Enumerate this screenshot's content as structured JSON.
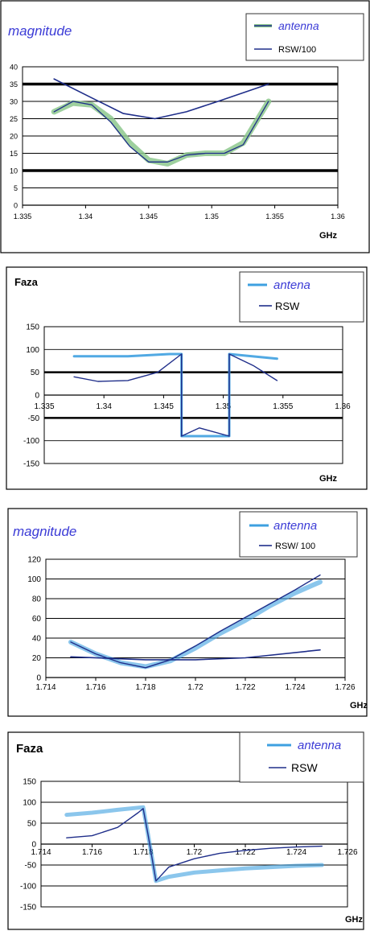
{
  "chart_data": [
    {
      "type": "line",
      "title": "magnitude",
      "xlabel": "GHz",
      "ylabel": "",
      "xlim": [
        1.335,
        1.36
      ],
      "ylim": [
        0,
        40
      ],
      "x_ticks": [
        "1.335",
        "1.34",
        "1.345",
        "1.35",
        "1.355",
        "1.36"
      ],
      "y_ticks": [
        "0",
        "5",
        "10",
        "15",
        "20",
        "25",
        "30",
        "35",
        "40"
      ],
      "grid": true,
      "legend_position": "top-right",
      "reference_lines": [
        10,
        35
      ],
      "series": [
        {
          "name": "antenna",
          "color": "#8dc88d",
          "x": [
            1.3375,
            1.339,
            1.3405,
            1.342,
            1.3435,
            1.345,
            1.3465,
            1.348,
            1.3495,
            1.351,
            1.3525,
            1.3545
          ],
          "y": [
            27,
            29.5,
            29,
            25,
            18,
            13,
            12,
            14.5,
            15,
            15,
            18,
            30
          ]
        },
        {
          "name": "RSW/100",
          "color": "#1f2e8a",
          "x": [
            1.3375,
            1.3405,
            1.343,
            1.3455,
            1.348,
            1.3505,
            1.3545
          ],
          "y": [
            36.5,
            31,
            26.5,
            25,
            27,
            30,
            35
          ]
        },
        {
          "name": "",
          "color": "#1f2e8a",
          "x": [
            1.3375,
            1.339,
            1.3405,
            1.342,
            1.3435,
            1.345,
            1.3465,
            1.348,
            1.3495,
            1.351,
            1.3525,
            1.3545
          ],
          "y": [
            27,
            30,
            29,
            24,
            17,
            12.5,
            12.5,
            14.5,
            15,
            15,
            17.5,
            30
          ]
        }
      ]
    },
    {
      "type": "line",
      "title": "Faza",
      "xlabel": "GHz",
      "ylabel": "",
      "xlim": [
        1.335,
        1.36
      ],
      "ylim": [
        -150,
        150
      ],
      "x_ticks": [
        "1.335",
        "1.34",
        "1.345",
        "1.35",
        "1.355",
        "1.36"
      ],
      "y_ticks": [
        "-150",
        "-100",
        "-50",
        "0",
        "50",
        "100",
        "150"
      ],
      "grid": true,
      "legend_position": "top-right",
      "reference_lines": [
        50,
        -50
      ],
      "series": [
        {
          "name": "antena",
          "color": "#3ea0e0",
          "x": [
            1.3375,
            1.342,
            1.3455,
            1.3465,
            1.3465,
            1.3505,
            1.3505,
            1.3545
          ],
          "y": [
            85,
            85,
            90,
            90,
            -90,
            -90,
            90,
            80
          ]
        },
        {
          "name": "RSW",
          "color": "#1f2e8a",
          "x": [
            1.3375,
            1.3395,
            1.342,
            1.3445,
            1.3465,
            1.3465,
            1.348,
            1.3505,
            1.3505,
            1.3525,
            1.3545
          ],
          "y": [
            40,
            30,
            32,
            50,
            90,
            -90,
            -72,
            -90,
            90,
            65,
            32
          ]
        }
      ]
    },
    {
      "type": "line",
      "title": "magnitude",
      "xlabel": "GHz",
      "ylabel": "",
      "xlim": [
        1.714,
        1.726
      ],
      "ylim": [
        0,
        120
      ],
      "x_ticks": [
        "1.714",
        "1.716",
        "1.718",
        "1.72",
        "1.722",
        "1.724",
        "1.726"
      ],
      "y_ticks": [
        "0",
        "20",
        "40",
        "60",
        "80",
        "100",
        "120"
      ],
      "grid": true,
      "legend_position": "top-right",
      "series": [
        {
          "name": "antenna",
          "color": "#3ea0e0",
          "x": [
            1.715,
            1.716,
            1.717,
            1.718,
            1.719,
            1.72,
            1.721,
            1.722,
            1.723,
            1.724,
            1.725
          ],
          "y": [
            36,
            24,
            15,
            11,
            17,
            30,
            45,
            58,
            73,
            86,
            97
          ]
        },
        {
          "name": "RSW/ 100",
          "color": "#1f2e8a",
          "x": [
            1.715,
            1.718,
            1.72,
            1.722,
            1.725
          ],
          "y": [
            21,
            18,
            18,
            20,
            28
          ]
        },
        {
          "name": "",
          "color": "#1f2e8a",
          "x": [
            1.715,
            1.716,
            1.717,
            1.718,
            1.719,
            1.72,
            1.721,
            1.722,
            1.723,
            1.724,
            1.725
          ],
          "y": [
            36,
            24,
            15,
            10,
            18,
            32,
            47,
            61,
            75,
            89,
            104
          ]
        }
      ]
    },
    {
      "type": "line",
      "title": "Faza",
      "xlabel": "GHz",
      "ylabel": "",
      "xlim": [
        1.714,
        1.726
      ],
      "ylim": [
        -150,
        150
      ],
      "x_ticks": [
        "1.714",
        "1.716",
        "1.718",
        "1.72",
        "1.722",
        "1.724",
        "1.726"
      ],
      "y_ticks": [
        "-150",
        "-100",
        "-50",
        "0",
        "50",
        "100",
        "150"
      ],
      "grid": true,
      "legend_position": "top-right",
      "series": [
        {
          "name": "antenna",
          "color": "#3ea0e0",
          "x": [
            1.715,
            1.716,
            1.717,
            1.718,
            1.7182,
            1.7185,
            1.719,
            1.72,
            1.721,
            1.722,
            1.723,
            1.724,
            1.725
          ],
          "y": [
            70,
            75,
            82,
            88,
            20,
            -88,
            -78,
            -68,
            -63,
            -58,
            -55,
            -52,
            -50
          ]
        },
        {
          "name": "RSW",
          "color": "#1f2e8a",
          "x": [
            1.715,
            1.716,
            1.717,
            1.7178,
            1.718,
            1.7182,
            1.7185,
            1.719,
            1.72,
            1.721,
            1.722,
            1.723,
            1.724,
            1.725
          ],
          "y": [
            15,
            20,
            40,
            75,
            85,
            20,
            -88,
            -55,
            -35,
            -22,
            -15,
            -10,
            -7,
            -5
          ]
        }
      ]
    }
  ]
}
